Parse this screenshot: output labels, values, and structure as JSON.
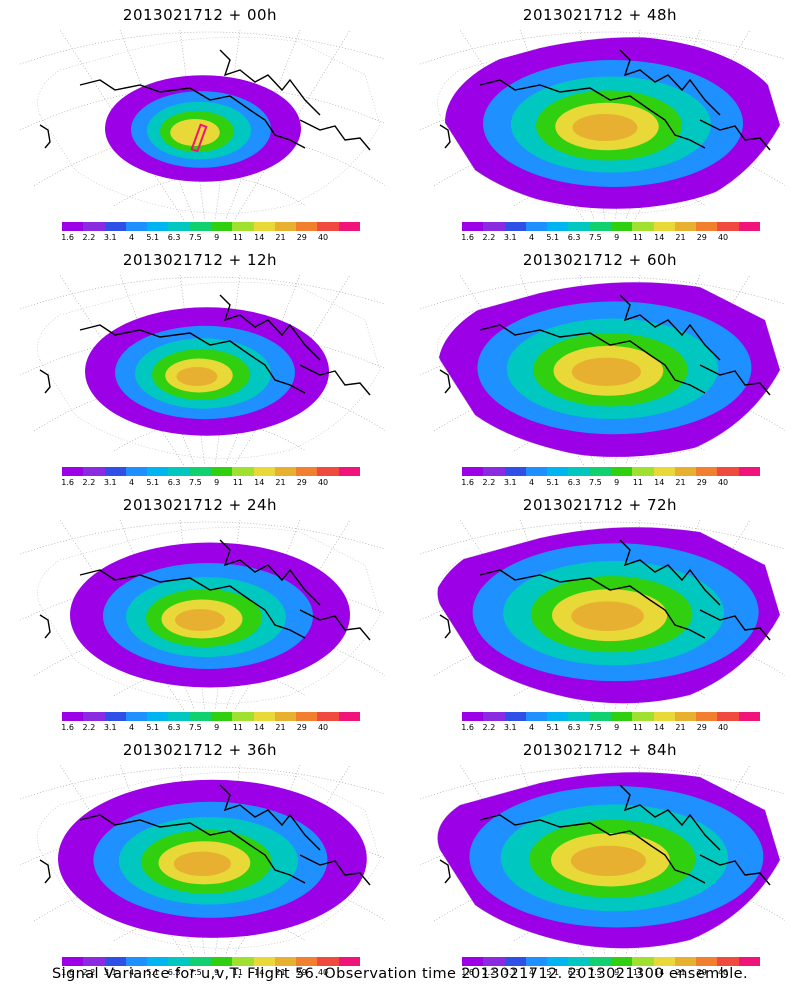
{
  "panels": [
    {
      "title": "2013021712 + 00h",
      "intensity": 0.15
    },
    {
      "title": "2013021712 + 48h",
      "intensity": 0.75
    },
    {
      "title": "2013021712 + 12h",
      "intensity": 0.35
    },
    {
      "title": "2013021712 + 60h",
      "intensity": 0.82
    },
    {
      "title": "2013021712 + 24h",
      "intensity": 0.5
    },
    {
      "title": "2013021712 + 72h",
      "intensity": 0.88
    },
    {
      "title": "2013021712 + 36h",
      "intensity": 0.62
    },
    {
      "title": "2013021712 + 84h",
      "intensity": 0.92
    }
  ],
  "colorbar": {
    "labels": [
      "1.6",
      "2.2",
      "3.1",
      "4",
      "5.1",
      "6.3",
      "7.5",
      "9",
      "11",
      "14",
      "21",
      "29",
      "40"
    ],
    "colors": [
      "#9b00e6",
      "#8a2be2",
      "#2f4fe6",
      "#1e90ff",
      "#00b4f0",
      "#00c8c0",
      "#10d070",
      "#30d010",
      "#a0e030",
      "#e8d838",
      "#e8b030",
      "#f08030",
      "#f04a40",
      "#f0147a"
    ]
  },
  "caption": "Signal Variance for u,v,T. Flight 56. Observation time 2013021712. 2013021300 ensemble."
}
